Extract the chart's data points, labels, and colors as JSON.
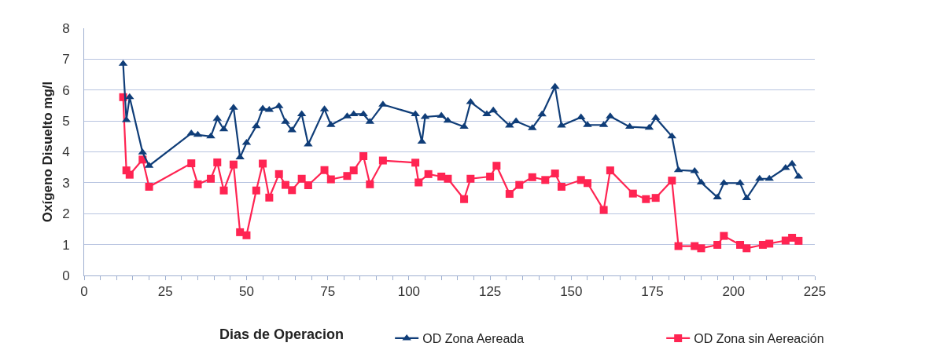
{
  "chart_data": {
    "type": "line",
    "xlabel": "Dias de Operacion",
    "ylabel": "Oxígeno Disuelto mg/l",
    "xlim": [
      0,
      225
    ],
    "xticks": [
      0,
      {
        "value": 5,
        "label": null
      },
      {
        "value": 10,
        "label": null
      },
      {
        "value": 15,
        "label": null
      },
      {
        "value": 20,
        "label": null
      },
      25,
      {
        "value": 30,
        "label": null
      },
      {
        "value": 35,
        "label": null
      },
      {
        "value": 40,
        "label": null
      },
      {
        "value": 45,
        "label": null
      },
      50,
      {
        "value": 55,
        "label": null
      },
      {
        "value": 60,
        "label": null
      },
      {
        "value": 65,
        "label": null
      },
      {
        "value": 70,
        "label": null
      },
      75,
      {
        "value": 80,
        "label": null
      },
      {
        "value": 85,
        "label": null
      },
      {
        "value": 90,
        "label": null
      },
      {
        "value": 95,
        "label": null
      },
      100,
      {
        "value": 105,
        "label": null
      },
      {
        "value": 110,
        "label": null
      },
      {
        "value": 115,
        "label": null
      },
      {
        "value": 120,
        "label": null
      },
      125,
      {
        "value": 130,
        "label": null
      },
      {
        "value": 135,
        "label": null
      },
      {
        "value": 140,
        "label": null
      },
      {
        "value": 145,
        "label": null
      },
      150,
      {
        "value": 155,
        "label": null
      },
      {
        "value": 160,
        "label": null
      },
      {
        "value": 165,
        "label": null
      },
      {
        "value": 170,
        "label": null
      },
      175,
      {
        "value": 180,
        "label": null
      },
      {
        "value": 185,
        "label": null
      },
      {
        "value": 190,
        "label": null
      },
      {
        "value": 195,
        "label": null
      },
      200,
      {
        "value": 205,
        "label": null
      },
      {
        "value": 210,
        "label": null
      },
      {
        "value": 215,
        "label": null
      },
      {
        "value": 220,
        "label": null
      },
      225
    ],
    "ylim": [
      0,
      8
    ],
    "yticks": [
      0,
      1,
      2,
      3,
      4,
      5,
      6,
      7,
      8
    ],
    "grid": "y",
    "legend": "bottom",
    "series": [
      {
        "name": "OD Zona Aereada",
        "color": "#0f3d78",
        "marker": "triangle",
        "line_style": "solid",
        "x": [
          12,
          13,
          14,
          18,
          20,
          33,
          35,
          39,
          41,
          43,
          46,
          48,
          50,
          53,
          55,
          57,
          60,
          62,
          64,
          67,
          69,
          74,
          76,
          81,
          83,
          86,
          88,
          92,
          102,
          104,
          105,
          110,
          112,
          117,
          119,
          124,
          126,
          131,
          133,
          138,
          141,
          145,
          147,
          153,
          155,
          160,
          162,
          168,
          174,
          176,
          181,
          183,
          188,
          190,
          195,
          197,
          202,
          204,
          208,
          211,
          216,
          218,
          220
        ],
        "values": [
          6.85,
          5.03,
          5.77,
          3.98,
          3.55,
          4.6,
          4.55,
          4.5,
          5.07,
          4.73,
          5.43,
          3.82,
          4.29,
          4.83,
          5.4,
          5.36,
          5.48,
          4.97,
          4.7,
          5.22,
          4.24,
          5.38,
          4.87,
          5.15,
          5.22,
          5.22,
          4.97,
          5.53,
          5.22,
          4.33,
          5.13,
          5.17,
          5.01,
          4.81,
          5.61,
          5.22,
          5.34,
          4.85,
          4.99,
          4.77,
          5.21,
          6.11,
          4.85,
          5.12,
          4.87,
          4.87,
          5.15,
          4.81,
          4.78,
          5.1,
          4.5,
          3.41,
          3.38,
          3.01,
          2.53,
          2.99,
          2.99,
          2.5,
          3.13,
          3.13,
          3.48,
          3.61,
          3.2
        ]
      },
      {
        "name": "OD Zona sin Aereación",
        "color": "#ff2452",
        "marker": "square",
        "line_style": "solid",
        "x": [
          12,
          13,
          14,
          18,
          20,
          33,
          35,
          39,
          41,
          43,
          46,
          48,
          50,
          53,
          55,
          57,
          60,
          62,
          64,
          67,
          69,
          74,
          76,
          81,
          83,
          86,
          88,
          92,
          102,
          103,
          106,
          110,
          112,
          117,
          119,
          125,
          127,
          131,
          134,
          138,
          142,
          145,
          147,
          153,
          155,
          160,
          162,
          169,
          173,
          176,
          181,
          183,
          188,
          190,
          195,
          197,
          202,
          204,
          209,
          211,
          216,
          218,
          220
        ],
        "values": [
          5.77,
          3.4,
          3.26,
          3.75,
          2.87,
          3.63,
          2.95,
          3.13,
          3.66,
          2.75,
          3.59,
          1.4,
          1.3,
          2.75,
          3.62,
          2.52,
          3.28,
          2.93,
          2.76,
          3.13,
          2.92,
          3.41,
          3.11,
          3.22,
          3.4,
          3.86,
          2.95,
          3.72,
          3.65,
          3.01,
          3.28,
          3.2,
          3.13,
          2.47,
          3.13,
          3.2,
          3.55,
          2.64,
          2.93,
          3.18,
          3.09,
          3.3,
          2.87,
          3.09,
          2.99,
          2.12,
          3.4,
          2.65,
          2.47,
          2.51,
          3.07,
          0.95,
          0.95,
          0.88,
          0.99,
          1.28,
          0.99,
          0.88,
          0.99,
          1.03,
          1.13,
          1.22,
          1.12
        ]
      }
    ]
  }
}
